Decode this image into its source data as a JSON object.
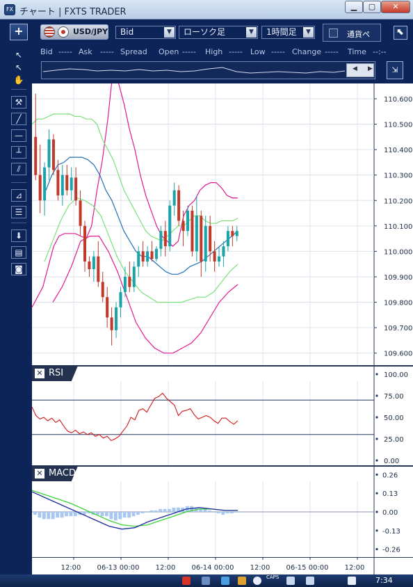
{
  "window": {
    "title": "チャート | FXTS TRADER",
    "app_icon": "FX",
    "minimize_icon": "minimize-icon",
    "maximize_icon": "maximize-icon",
    "close_icon": "close-icon"
  },
  "toolbar": {
    "add_label": "+",
    "pair": "USD/JPY",
    "price_type": "Bid",
    "chart_type": "ローソク足",
    "period": "1時間足",
    "currency_label": "通貨ペ",
    "expand_icon": "arrow-expand-icon"
  },
  "infobar": {
    "fields": [
      {
        "label": "Bid",
        "value": "-----"
      },
      {
        "label": "Ask",
        "value": "-----"
      },
      {
        "label": "Spread",
        "value": ""
      },
      {
        "label": "Open",
        "value": "-----"
      },
      {
        "label": "High",
        "value": "-----"
      },
      {
        "label": "Low",
        "value": "-----"
      },
      {
        "label": "Change",
        "value": "-----"
      },
      {
        "label": "Time",
        "value": "--:--"
      }
    ]
  },
  "lefttools": [
    {
      "name": "pointer-icon",
      "glyph": "↖"
    },
    {
      "name": "crosshair-pointer-icon",
      "glyph": "↖"
    },
    {
      "name": "hand-icon",
      "glyph": "✋"
    },
    {
      "name": "hammer-icon",
      "glyph": "⚒"
    },
    {
      "name": "trendline-icon",
      "glyph": "╱"
    },
    {
      "name": "horizontal-line-icon",
      "glyph": "—"
    },
    {
      "name": "vertical-line-icon",
      "glyph": "┴"
    },
    {
      "name": "parallel-lines-icon",
      "glyph": "⫽"
    },
    {
      "name": "fan-icon",
      "glyph": "⊿"
    },
    {
      "name": "fibonacci-icon",
      "glyph": "☰"
    },
    {
      "name": "download-icon",
      "glyph": "⬇"
    },
    {
      "name": "list-icon",
      "glyph": "▤"
    },
    {
      "name": "camera-icon",
      "glyph": "◙"
    }
  ],
  "chart_data": [
    {
      "type": "line",
      "pane": "price",
      "y_ticks": [
        "110.600",
        "110.500",
        "110.400",
        "110.300",
        "110.200",
        "110.100",
        "110.000",
        "109.900",
        "109.800",
        "109.700",
        "109.600"
      ],
      "ylim": [
        109.55,
        110.66
      ],
      "candles": [
        {
          "o": 110.45,
          "h": 110.62,
          "l": 110.28,
          "c": 110.3
        },
        {
          "o": 110.3,
          "h": 110.42,
          "l": 110.15,
          "c": 110.2
        },
        {
          "o": 110.2,
          "h": 110.35,
          "l": 110.14,
          "c": 110.33
        },
        {
          "o": 110.33,
          "h": 110.48,
          "l": 110.28,
          "c": 110.44
        },
        {
          "o": 110.44,
          "h": 110.46,
          "l": 110.3,
          "c": 110.32
        },
        {
          "o": 110.32,
          "h": 110.36,
          "l": 110.2,
          "c": 110.22
        },
        {
          "o": 110.22,
          "h": 110.34,
          "l": 110.18,
          "c": 110.3
        },
        {
          "o": 110.3,
          "h": 110.34,
          "l": 110.22,
          "c": 110.24
        },
        {
          "o": 110.24,
          "h": 110.33,
          "l": 110.2,
          "c": 110.29
        },
        {
          "o": 110.29,
          "h": 110.33,
          "l": 110.18,
          "c": 110.2
        },
        {
          "o": 110.2,
          "h": 110.24,
          "l": 110.06,
          "c": 110.1
        },
        {
          "o": 110.1,
          "h": 110.12,
          "l": 109.92,
          "c": 109.96
        },
        {
          "o": 109.96,
          "h": 109.98,
          "l": 109.9,
          "c": 109.93
        },
        {
          "o": 109.93,
          "h": 110.0,
          "l": 109.88,
          "c": 109.98
        },
        {
          "o": 109.98,
          "h": 110.04,
          "l": 109.86,
          "c": 109.88
        },
        {
          "o": 109.88,
          "h": 109.92,
          "l": 109.8,
          "c": 109.82
        },
        {
          "o": 109.82,
          "h": 109.86,
          "l": 109.7,
          "c": 109.74
        },
        {
          "o": 109.74,
          "h": 109.78,
          "l": 109.63,
          "c": 109.69
        },
        {
          "o": 109.69,
          "h": 109.8,
          "l": 109.66,
          "c": 109.78
        },
        {
          "o": 109.78,
          "h": 109.86,
          "l": 109.74,
          "c": 109.84
        },
        {
          "o": 109.84,
          "h": 109.94,
          "l": 109.82,
          "c": 109.9
        },
        {
          "o": 109.9,
          "h": 109.96,
          "l": 109.84,
          "c": 109.86
        },
        {
          "o": 109.86,
          "h": 109.96,
          "l": 109.84,
          "c": 109.94
        },
        {
          "o": 109.94,
          "h": 110.02,
          "l": 109.9,
          "c": 110.0
        },
        {
          "o": 110.0,
          "h": 110.04,
          "l": 109.94,
          "c": 109.96
        },
        {
          "o": 109.96,
          "h": 110.02,
          "l": 109.94,
          "c": 110.0
        },
        {
          "o": 110.0,
          "h": 110.04,
          "l": 109.96,
          "c": 109.97
        },
        {
          "o": 109.97,
          "h": 110.02,
          "l": 109.96,
          "c": 110.01
        },
        {
          "o": 110.01,
          "h": 110.1,
          "l": 109.98,
          "c": 110.08
        },
        {
          "o": 110.08,
          "h": 110.12,
          "l": 109.98,
          "c": 110.02
        },
        {
          "o": 110.02,
          "h": 110.2,
          "l": 110.0,
          "c": 110.18
        },
        {
          "o": 110.18,
          "h": 110.27,
          "l": 110.14,
          "c": 110.24
        },
        {
          "o": 110.24,
          "h": 110.26,
          "l": 110.1,
          "c": 110.12
        },
        {
          "o": 110.12,
          "h": 110.16,
          "l": 110.02,
          "c": 110.08
        },
        {
          "o": 110.08,
          "h": 110.18,
          "l": 110.06,
          "c": 110.16
        },
        {
          "o": 110.16,
          "h": 110.18,
          "l": 109.98,
          "c": 110.0
        },
        {
          "o": 110.0,
          "h": 110.22,
          "l": 109.96,
          "c": 110.14
        },
        {
          "o": 110.14,
          "h": 110.16,
          "l": 109.9,
          "c": 109.96
        },
        {
          "o": 109.96,
          "h": 110.14,
          "l": 109.92,
          "c": 110.1
        },
        {
          "o": 110.1,
          "h": 110.14,
          "l": 109.96,
          "c": 110.0
        },
        {
          "o": 110.0,
          "h": 110.04,
          "l": 109.92,
          "c": 109.96
        },
        {
          "o": 109.96,
          "h": 110.02,
          "l": 109.94,
          "c": 109.98
        },
        {
          "o": 109.98,
          "h": 110.04,
          "l": 109.94,
          "c": 110.02
        },
        {
          "o": 110.02,
          "h": 110.1,
          "l": 110.0,
          "c": 110.08
        },
        {
          "o": 110.08,
          "h": 110.1,
          "l": 110.02,
          "c": 110.06
        },
        {
          "o": 110.06,
          "h": 110.1,
          "l": 110.04,
          "c": 110.08
        }
      ],
      "bands": {
        "upper2": [
          109.78,
          109.82,
          109.86,
          109.94,
          110.02,
          110.06,
          110.07,
          110.07,
          110.07,
          110.06,
          110.05,
          110.1,
          110.24,
          110.36,
          110.52,
          110.72,
          110.66,
          110.58,
          110.48,
          110.4,
          110.3,
          110.22,
          110.16,
          110.1,
          110.06,
          110.04,
          110.02,
          110.04,
          110.14,
          110.18,
          110.2,
          110.24,
          110.26,
          110.27,
          110.27,
          110.25,
          110.22,
          110.21,
          110.21
        ],
        "upper1": [
          110.5,
          110.52,
          110.52,
          110.53,
          110.54,
          110.54,
          110.54,
          110.54,
          110.53,
          110.53,
          110.52,
          110.52,
          110.5,
          110.44,
          110.4,
          110.36,
          110.3,
          110.24,
          110.2,
          110.16,
          110.12,
          110.08,
          110.06,
          110.05,
          110.04,
          110.06,
          110.08,
          110.1,
          110.1,
          110.12,
          110.14,
          110.14,
          110.12,
          110.11,
          110.11,
          110.12,
          110.12,
          110.12,
          110.13
        ],
        "middle": [
          110.24,
          110.3,
          110.34,
          110.35,
          110.37,
          110.37,
          110.37,
          110.36,
          110.34,
          110.3,
          110.24,
          110.2,
          110.14,
          110.08,
          110.04,
          110.0,
          109.98,
          109.98,
          109.96,
          109.94,
          109.92,
          109.91,
          109.91,
          109.92,
          109.94,
          109.95,
          109.96,
          109.98,
          110.0,
          110.02,
          110.04,
          110.06,
          110.08
        ],
        "lower1": [
          109.96,
          110.04,
          110.12,
          110.18,
          110.21,
          110.2,
          110.18,
          110.14,
          110.06,
          109.98,
          109.92,
          109.88,
          109.84,
          109.82,
          109.8,
          109.8,
          109.8,
          109.8,
          109.81,
          109.82,
          109.82,
          109.84,
          109.88,
          109.92,
          109.95
        ],
        "lower2": [
          109.8,
          109.86,
          109.94,
          110.04,
          110.06,
          110.06,
          110.0,
          109.92,
          109.82,
          109.72,
          109.66,
          109.62,
          109.6,
          109.6,
          109.62,
          109.64,
          109.68,
          109.74,
          109.8,
          109.84,
          109.87
        ]
      }
    },
    {
      "type": "line",
      "pane": "rsi",
      "title": "RSI",
      "y_ticks": [
        "100.00",
        "75.00",
        "50.00",
        "25.00",
        "0.00"
      ],
      "ylim": [
        0,
        100
      ],
      "levels": [
        70,
        30
      ],
      "values": [
        62,
        52,
        48,
        50,
        46,
        49,
        44,
        47,
        40,
        34,
        32,
        35,
        31,
        33,
        30,
        32,
        28,
        30,
        26,
        28,
        23,
        25,
        28,
        34,
        40,
        50,
        47,
        58,
        60,
        56,
        64,
        72,
        74,
        78,
        72,
        68,
        64,
        52,
        57,
        58,
        60,
        53,
        48,
        50,
        52,
        50,
        46,
        43,
        49,
        49,
        45,
        42,
        46
      ]
    },
    {
      "type": "line",
      "pane": "macd",
      "title": "MACD",
      "y_ticks": [
        "0.26",
        "0.13",
        "0.00",
        "-0.13",
        "-0.26"
      ],
      "ylim": [
        -0.32,
        0.32
      ],
      "macd": [
        0.14,
        0.1,
        0.06,
        0.02,
        -0.02,
        -0.06,
        -0.1,
        -0.12,
        -0.11,
        -0.07,
        -0.04,
        -0.01,
        0.02,
        0.03,
        0.02,
        0.01,
        0.01
      ],
      "signal": [
        0.15,
        0.12,
        0.09,
        0.06,
        0.02,
        -0.02,
        -0.06,
        -0.09,
        -0.1,
        -0.09,
        -0.06,
        -0.03,
        0.0,
        0.02,
        0.02,
        0.01,
        0.01
      ],
      "histogram": [
        -0.02,
        -0.04,
        -0.05,
        -0.05,
        -0.05,
        -0.04,
        -0.04,
        -0.03,
        -0.03,
        -0.03,
        -0.02,
        -0.02,
        -0.01,
        -0.02,
        -0.02,
        -0.03,
        -0.03,
        -0.05,
        -0.06,
        -0.05,
        -0.04,
        -0.04,
        -0.03,
        -0.02,
        -0.01,
        0.0,
        0.01,
        0.01,
        0.02,
        0.02,
        0.02,
        0.03,
        0.03,
        0.03,
        0.04,
        0.04,
        0.03,
        0.02,
        0.02,
        0.01,
        0.0,
        -0.01,
        -0.02,
        -0.01,
        -0.01,
        0.0
      ]
    }
  ],
  "xaxis": {
    "ticks": [
      "12:00",
      "06-13 00:00",
      "12:00",
      "06-14 00:00",
      "12:00",
      "06-15 00:00",
      "12:00"
    ]
  },
  "taskbar": {
    "clock": "7:34",
    "caps": "CAPS"
  },
  "colors": {
    "up_candle": "#1aa3a8",
    "down_candle": "#c0392b",
    "band2": "#e0198f",
    "band1": "#7be07b",
    "middle": "#1f6fb8",
    "rsi": "#d01818",
    "macd": "#1c2a9e",
    "signal": "#3cd23c",
    "histogram": "#a8c8f0"
  }
}
